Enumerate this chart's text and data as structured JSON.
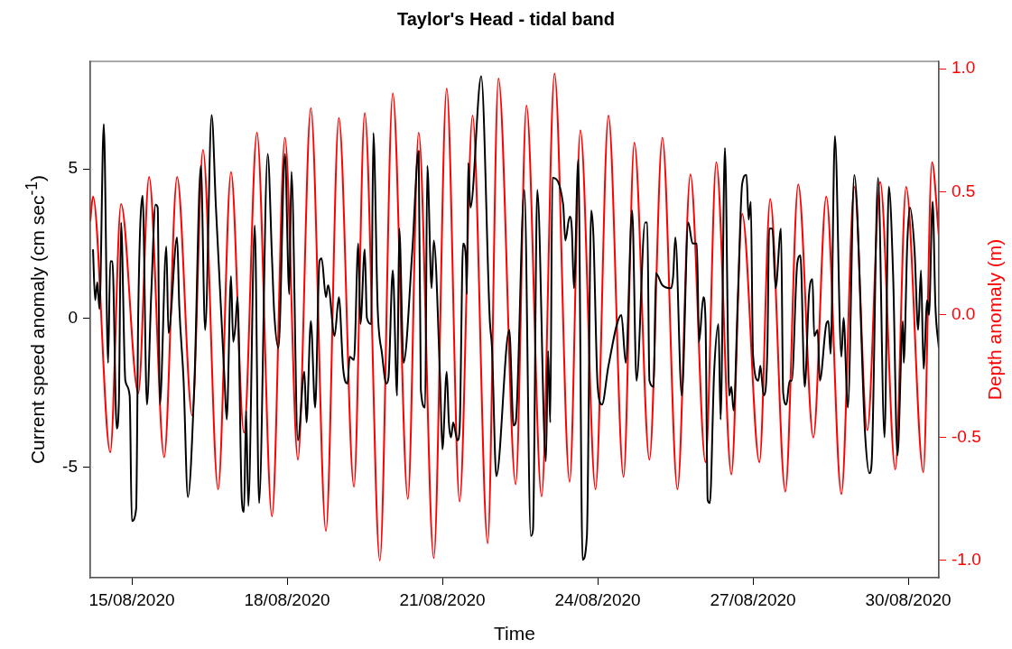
{
  "chart_data": {
    "type": "line",
    "title": "Taylor's Head - tidal band",
    "xlabel": "Time",
    "ylabel": "Current speed anomaly (cm sec$^{-1}$)",
    "y2label": "Depth anomaly (m)",
    "xlim": [
      "2020-08-14T04:44",
      "2020-08-30T14:12"
    ],
    "xticks": [
      {
        "value": "2020-08-15",
        "label": "15/08/2020"
      },
      {
        "value": "2020-08-18",
        "label": "18/08/2020"
      },
      {
        "value": "2020-08-21",
        "label": "21/08/2020"
      },
      {
        "value": "2020-08-24",
        "label": "24/08/2020"
      },
      {
        "value": "2020-08-27",
        "label": "27/08/2020"
      },
      {
        "value": "2020-08-30",
        "label": "30/08/2020"
      }
    ],
    "ylim": [
      -8.7,
      8.6
    ],
    "yticks": [
      -5,
      0,
      5
    ],
    "y2lim": [
      -1.07,
      1.03
    ],
    "y2ticks": [
      {
        "value": -1,
        "label": "-1.0"
      },
      {
        "value": -0.5,
        "label": "-0.5"
      },
      {
        "value": 0,
        "label": "0.0"
      },
      {
        "value": 0.5,
        "label": "0.5"
      },
      {
        "value": 1,
        "label": "1.0"
      }
    ],
    "grid": false,
    "legend": false,
    "series": [
      {
        "color": "#000000",
        "x": [
          "2020-08-14T06:00",
          "2020-08-14T07:00",
          "2020-08-14T08:00",
          "2020-08-14T09:00",
          "2020-08-14T11:00",
          "2020-08-14T13:00",
          "2020-08-14T14:00",
          "2020-08-14T15:00",
          "2020-08-14T17:00",
          "2020-08-14T18:00",
          "2020-08-14T19:00",
          "2020-08-14T21:00",
          "2020-08-14T23:00",
          "2020-08-15T00:00",
          "2020-08-15T02:00",
          "2020-08-15T03:00",
          "2020-08-15T05:00",
          "2020-08-15T07:00",
          "2020-08-15T09:00",
          "2020-08-15T11:00",
          "2020-08-15T12:00",
          "2020-08-15T13:00",
          "2020-08-15T16:00",
          "2020-08-15T17:00",
          "2020-08-15T21:00",
          "2020-08-15T22:00",
          "2020-08-16T00:00",
          "2020-08-16T02:00",
          "2020-08-16T05:00",
          "2020-08-16T08:00",
          "2020-08-16T10:00",
          "2020-08-16T13:00",
          "2020-08-16T15:00",
          "2020-08-16T19:00",
          "2020-08-16T20:00",
          "2020-08-16T22:00",
          "2020-08-16T23:00",
          "2020-08-17T00:00",
          "2020-08-17T01:00",
          "2020-08-17T03:00",
          "2020-08-17T04:00",
          "2020-08-17T05:00",
          "2020-08-17T06:00",
          "2020-08-17T09:00",
          "2020-08-17T11:00",
          "2020-08-17T15:00",
          "2020-08-17T17:00",
          "2020-08-17T18:00",
          "2020-08-17T20:00",
          "2020-08-17T23:00",
          "2020-08-18T01:00",
          "2020-08-18T02:00",
          "2020-08-18T05:00",
          "2020-08-18T08:00",
          "2020-08-18T09:00",
          "2020-08-18T11:00",
          "2020-08-18T13:00",
          "2020-08-18T15:00",
          "2020-08-18T16:00",
          "2020-08-18T18:00",
          "2020-08-18T19:00",
          "2020-08-18T22:00",
          "2020-08-19T00:00",
          "2020-08-19T02:00",
          "2020-08-19T04:00",
          "2020-08-19T05:00",
          "2020-08-19T07:00",
          "2020-08-19T09:00",
          "2020-08-19T10:00",
          "2020-08-19T12:00",
          "2020-08-19T13:00",
          "2020-08-19T15:00",
          "2020-08-19T16:00",
          "2020-08-19T18:00",
          "2020-08-19T20:00",
          "2020-08-19T22:00",
          "2020-08-19T23:00",
          "2020-08-20T01:00",
          "2020-08-20T03:00",
          "2020-08-20T04:00",
          "2020-08-20T06:00",
          "2020-08-20T10:00",
          "2020-08-20T13:00",
          "2020-08-20T14:00",
          "2020-08-20T16:00",
          "2020-08-20T17:00",
          "2020-08-20T19:00",
          "2020-08-20T20:00",
          "2020-08-20T23:00",
          "2020-08-21T00:00",
          "2020-08-21T02:00",
          "2020-08-21T03:00",
          "2020-08-21T04:00",
          "2020-08-21T05:00",
          "2020-08-21T07:00",
          "2020-08-21T08:00",
          "2020-08-21T09:36",
          "2020-08-21T10:54",
          "2020-08-21T11:18",
          "2020-08-21T12:00",
          "2020-08-21T13:00",
          "2020-08-21T18:00",
          "2020-08-21T22:00",
          "2020-08-21T23:00",
          "2020-08-22T01:00",
          "2020-08-22T07:00",
          "2020-08-22T09:00",
          "2020-08-22T10:00",
          "2020-08-22T14:00",
          "2020-08-22T17:00",
          "2020-08-22T18:00",
          "2020-08-22T20:00",
          "2020-08-23T00:00",
          "2020-08-23T01:00",
          "2020-08-23T02:00",
          "2020-08-23T03:00",
          "2020-08-23T08:00",
          "2020-08-23T09:00",
          "2020-08-23T11:00",
          "2020-08-23T12:00",
          "2020-08-23T13:00",
          "2020-08-23T15:00",
          "2020-08-23T17:00",
          "2020-08-23T19:00",
          "2020-08-23T21:00",
          "2020-08-23T22:00",
          "2020-08-24T00:00",
          "2020-08-24T02:00",
          "2020-08-24T05:00",
          "2020-08-24T11:00",
          "2020-08-24T13:00",
          "2020-08-24T16:00",
          "2020-08-24T18:00",
          "2020-08-24T22:00",
          "2020-08-24T23:00",
          "2020-08-25T00:00",
          "2020-08-25T02:00",
          "2020-08-25T03:00",
          "2020-08-25T06:00",
          "2020-08-25T10:00",
          "2020-08-25T11:00",
          "2020-08-25T12:00",
          "2020-08-25T15:00",
          "2020-08-25T18:00",
          "2020-08-25T20:00",
          "2020-08-25T22:00",
          "2020-08-25T23:00",
          "2020-08-26T01:00",
          "2020-08-26T02:00",
          "2020-08-26T03:00",
          "2020-08-26T04:00",
          "2020-08-26T06:00",
          "2020-08-26T08:00",
          "2020-08-26T09:00",
          "2020-08-26T11:00",
          "2020-08-26T13:00",
          "2020-08-26T14:00",
          "2020-08-26T15:00",
          "2020-08-26T17:00",
          "2020-08-26T19:00",
          "2020-08-26T21:00",
          "2020-08-26T22:00",
          "2020-08-26T23:00",
          "2020-08-27T00:00",
          "2020-08-27T02:30",
          "2020-08-27T03:24",
          "2020-08-27T05:00",
          "2020-08-27T06:42",
          "2020-08-27T07:30",
          "2020-08-27T09:00",
          "2020-08-27T10:30",
          "2020-08-27T13:00",
          "2020-08-27T14:00",
          "2020-08-27T15:30",
          "2020-08-27T17:00",
          "2020-08-27T18:00",
          "2020-08-27T20:30",
          "2020-08-27T22:00",
          "2020-08-28T00:00",
          "2020-08-28T02:00",
          "2020-08-28T03:36",
          "2020-08-28T04:24",
          "2020-08-28T06:00",
          "2020-08-28T07:00",
          "2020-08-28T10:00",
          "2020-08-28T11:00",
          "2020-08-28T12:00",
          "2020-08-28T14:00",
          "2020-08-28T17:00",
          "2020-08-28T18:00",
          "2020-08-28T20:00",
          "2020-08-28T23:00",
          "2020-08-29T04:00",
          "2020-08-29T06:00",
          "2020-08-29T07:00",
          "2020-08-29T10:00",
          "2020-08-29T13:00",
          "2020-08-29T15:00",
          "2020-08-29T17:00",
          "2020-08-29T19:00",
          "2020-08-29T21:30",
          "2020-08-29T21:54",
          "2020-08-29T23:36",
          "2020-08-30T00:48",
          "2020-08-30T02:54",
          "2020-08-30T04:36",
          "2020-08-30T05:54",
          "2020-08-30T07:06",
          "2020-08-30T08:48",
          "2020-08-30T09:36",
          "2020-08-30T11:18",
          "2020-08-30T12:36",
          "2020-08-30T14:12"
        ],
        "values": [
          2.3,
          0.6,
          1.2,
          0.3,
          6.5,
          -1.5,
          1.9,
          1.9,
          -3.7,
          -2.8,
          3.2,
          -2.1,
          -2.6,
          -6.8,
          -6.4,
          0.3,
          4.1,
          -2.9,
          0.8,
          3.8,
          3.7,
          -2.9,
          2.4,
          -0.5,
          2.7,
          0.4,
          -2.1,
          -6.0,
          -2.2,
          5.1,
          -0.4,
          6.8,
          3.7,
          -2.1,
          -3.4,
          1.4,
          -0.8,
          -0.3,
          0.7,
          -6.1,
          -6.5,
          -3.1,
          -6.3,
          3.1,
          -6.2,
          5.5,
          2.0,
          0.2,
          -1.0,
          5.5,
          0.8,
          4.9,
          -4.1,
          -1.8,
          -3.5,
          -0.1,
          -3.0,
          1.9,
          2.0,
          0.7,
          1.1,
          -0.6,
          0.7,
          -1.7,
          -2.2,
          -1.3,
          -1.4,
          2.5,
          -0.2,
          2.3,
          0.0,
          -0.2,
          6.2,
          0.3,
          -1.2,
          -2.2,
          -2.0,
          1.6,
          -2.6,
          3.0,
          -1.5,
          2.2,
          5.6,
          -2.4,
          -3.0,
          5.1,
          1.0,
          2.6,
          -2.2,
          -4.4,
          -1.8,
          -3.5,
          -4.0,
          -3.5,
          -4.1,
          -3.7,
          2.5,
          2.0,
          0.8,
          5.2,
          3.7,
          8.1,
          -0.1,
          -1.0,
          -5.3,
          -0.4,
          -3.6,
          -3.5,
          4.3,
          -7.3,
          -7.1,
          4.3,
          -4.8,
          -1.1,
          -3.5,
          4.7,
          3.8,
          2.6,
          3.4,
          3.0,
          1.0,
          5.3,
          -8.1,
          -7.3,
          3.6,
          2.8,
          -2.3,
          -2.9,
          -1.6,
          0.1,
          -1.5,
          3.6,
          -2.1,
          3.2,
          3.2,
          -2.1,
          -2.3,
          1.5,
          1.1,
          1.0,
          1.4,
          2.7,
          -2.6,
          3.2,
          2.5,
          2.5,
          -0.8,
          0.7,
          -0.1,
          -6.1,
          -6.2,
          -1.8,
          -0.2,
          -3.4,
          5.7,
          -2.6,
          -2.3,
          -3.1,
          0.7,
          4.5,
          4.8,
          3.3,
          3.9,
          -1.2,
          -2.1,
          -1.6,
          -2.6,
          -1.0,
          3.0,
          3.0,
          1.0,
          3.0,
          -2.5,
          -2.9,
          -2.1,
          -2.1,
          1.8,
          2.1,
          -2.3,
          0.8,
          1.3,
          -0.6,
          -0.4,
          -2.1,
          -0.2,
          -0.1,
          -1.2,
          6.1,
          -1.3,
          0.0,
          -3.0,
          4.8,
          -3.9,
          -5.2,
          -4.9,
          4.7,
          -4.0,
          4.4,
          1.4,
          -4.6,
          -0.1,
          -1.5,
          2.6,
          3.7,
          2.3,
          -0.4,
          1.6,
          -1.7,
          0.6,
          0.1,
          3.9,
          0.4,
          -1.0
        ]
      },
      {
        "color": "#ff0000",
        "axis": "y2",
        "x": [
          "2020-08-14T04:44",
          "2020-08-14T06:00",
          "2020-08-14T14:00",
          "2020-08-14T19:00",
          "2020-08-15T03:00",
          "2020-08-15T08:00",
          "2020-08-15T15:00",
          "2020-08-15T21:00",
          "2020-08-16T04:00",
          "2020-08-16T09:00",
          "2020-08-16T16:00",
          "2020-08-16T22:00",
          "2020-08-17T04:00",
          "2020-08-17T10:00",
          "2020-08-17T17:00",
          "2020-08-17T23:00",
          "2020-08-18T05:00",
          "2020-08-18T11:00",
          "2020-08-18T18:00",
          "2020-08-19T00:00",
          "2020-08-19T07:00",
          "2020-08-19T12:00",
          "2020-08-19T19:00",
          "2020-08-20T01:00",
          "2020-08-20T08:00",
          "2020-08-20T13:00",
          "2020-08-20T20:00",
          "2020-08-21T02:00",
          "2020-08-21T08:00",
          "2020-08-21T14:00",
          "2020-08-21T21:00",
          "2020-08-22T02:00",
          "2020-08-22T10:00",
          "2020-08-22T15:00",
          "2020-08-22T22:00",
          "2020-08-23T04:00",
          "2020-08-23T11:00",
          "2020-08-23T16:00",
          "2020-08-23T23:00",
          "2020-08-24T05:00",
          "2020-08-24T12:00",
          "2020-08-24T17:00",
          "2020-08-25T00:00",
          "2020-08-25T06:00",
          "2020-08-25T13:00",
          "2020-08-25T19:00",
          "2020-08-26T02:00",
          "2020-08-26T07:00",
          "2020-08-26T14:00",
          "2020-08-26T19:00",
          "2020-08-27T03:00",
          "2020-08-27T08:00",
          "2020-08-27T15:00",
          "2020-08-27T21:00",
          "2020-08-28T04:00",
          "2020-08-28T10:00",
          "2020-08-28T17:00",
          "2020-08-28T23:00",
          "2020-08-29T05:00",
          "2020-08-29T11:00",
          "2020-08-29T18:00",
          "2020-08-29T23:00",
          "2020-08-30T07:00",
          "2020-08-30T11:00",
          "2020-08-30T14:12"
        ],
        "values": [
          0.38,
          0.48,
          -0.56,
          0.45,
          -0.32,
          0.56,
          -0.58,
          0.56,
          -0.41,
          0.67,
          -0.71,
          0.58,
          -0.48,
          0.74,
          -0.82,
          0.72,
          -0.59,
          0.84,
          -0.88,
          0.8,
          -0.7,
          0.82,
          -1.0,
          0.9,
          -0.75,
          0.74,
          -0.99,
          0.92,
          -0.76,
          0.81,
          -0.93,
          0.96,
          -0.69,
          0.85,
          -0.74,
          0.98,
          -0.68,
          0.75,
          -0.71,
          0.81,
          -0.66,
          0.7,
          -0.59,
          0.72,
          -0.71,
          0.57,
          -0.6,
          0.62,
          -0.65,
          0.41,
          -0.6,
          0.47,
          -0.72,
          0.53,
          -0.5,
          0.48,
          -0.73,
          0.52,
          -0.47,
          0.54,
          -0.63,
          0.52,
          -0.64,
          0.62,
          0.32
        ]
      }
    ]
  }
}
